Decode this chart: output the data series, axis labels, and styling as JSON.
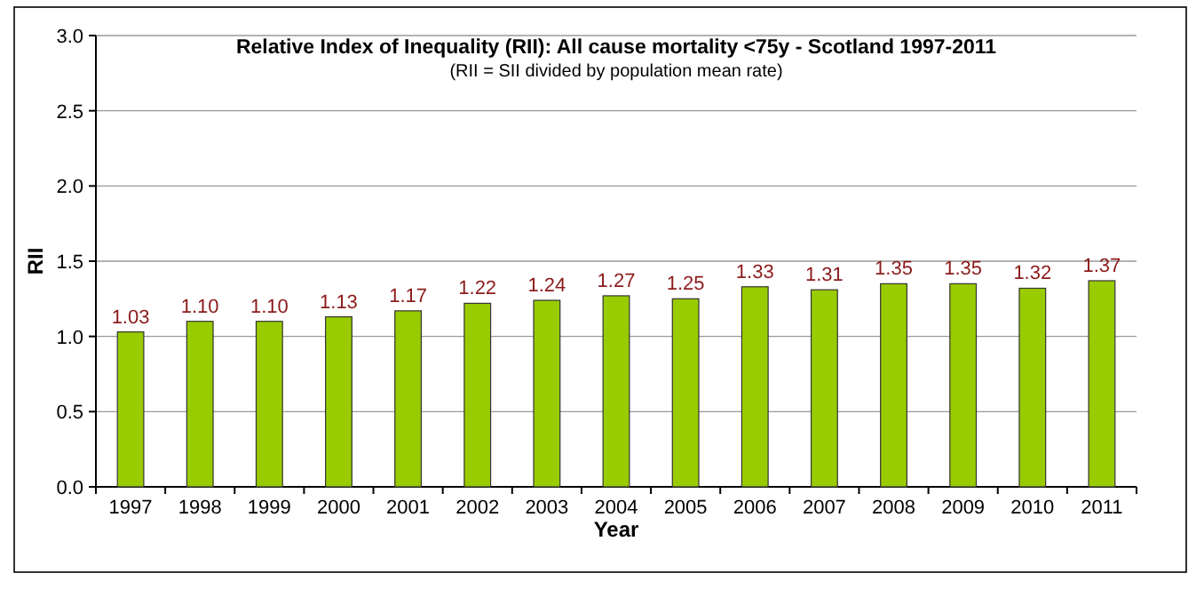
{
  "chart_data": {
    "type": "bar",
    "title": "Relative Index of Inequality (RII): All cause mortality <75y - Scotland 1997-2011",
    "subtitle": "(RII = SII divided by population mean rate)",
    "xlabel": "Year",
    "ylabel": "RII",
    "categories": [
      "1997",
      "1998",
      "1999",
      "2000",
      "2001",
      "2002",
      "2003",
      "2004",
      "2005",
      "2006",
      "2007",
      "2008",
      "2009",
      "2010",
      "2011"
    ],
    "values": [
      1.03,
      1.1,
      1.1,
      1.13,
      1.17,
      1.22,
      1.24,
      1.27,
      1.25,
      1.33,
      1.31,
      1.35,
      1.35,
      1.32,
      1.37
    ],
    "value_labels": [
      "1.03",
      "1.10",
      "1.10",
      "1.13",
      "1.17",
      "1.22",
      "1.24",
      "1.27",
      "1.25",
      "1.33",
      "1.31",
      "1.35",
      "1.35",
      "1.32",
      "1.37"
    ],
    "color": "#99cc00",
    "ylim": [
      0,
      3
    ],
    "yticks": [
      {
        "value": 0,
        "label": "0.0"
      },
      {
        "value": 0.5,
        "label": "0.5"
      },
      {
        "value": 1,
        "label": "1.0"
      },
      {
        "value": 1.5,
        "label": "1.5"
      },
      {
        "value": 2,
        "label": "2.0"
      },
      {
        "value": 2.5,
        "label": "2.5"
      },
      {
        "value": 3,
        "label": "3.0"
      }
    ],
    "grid": "y"
  }
}
